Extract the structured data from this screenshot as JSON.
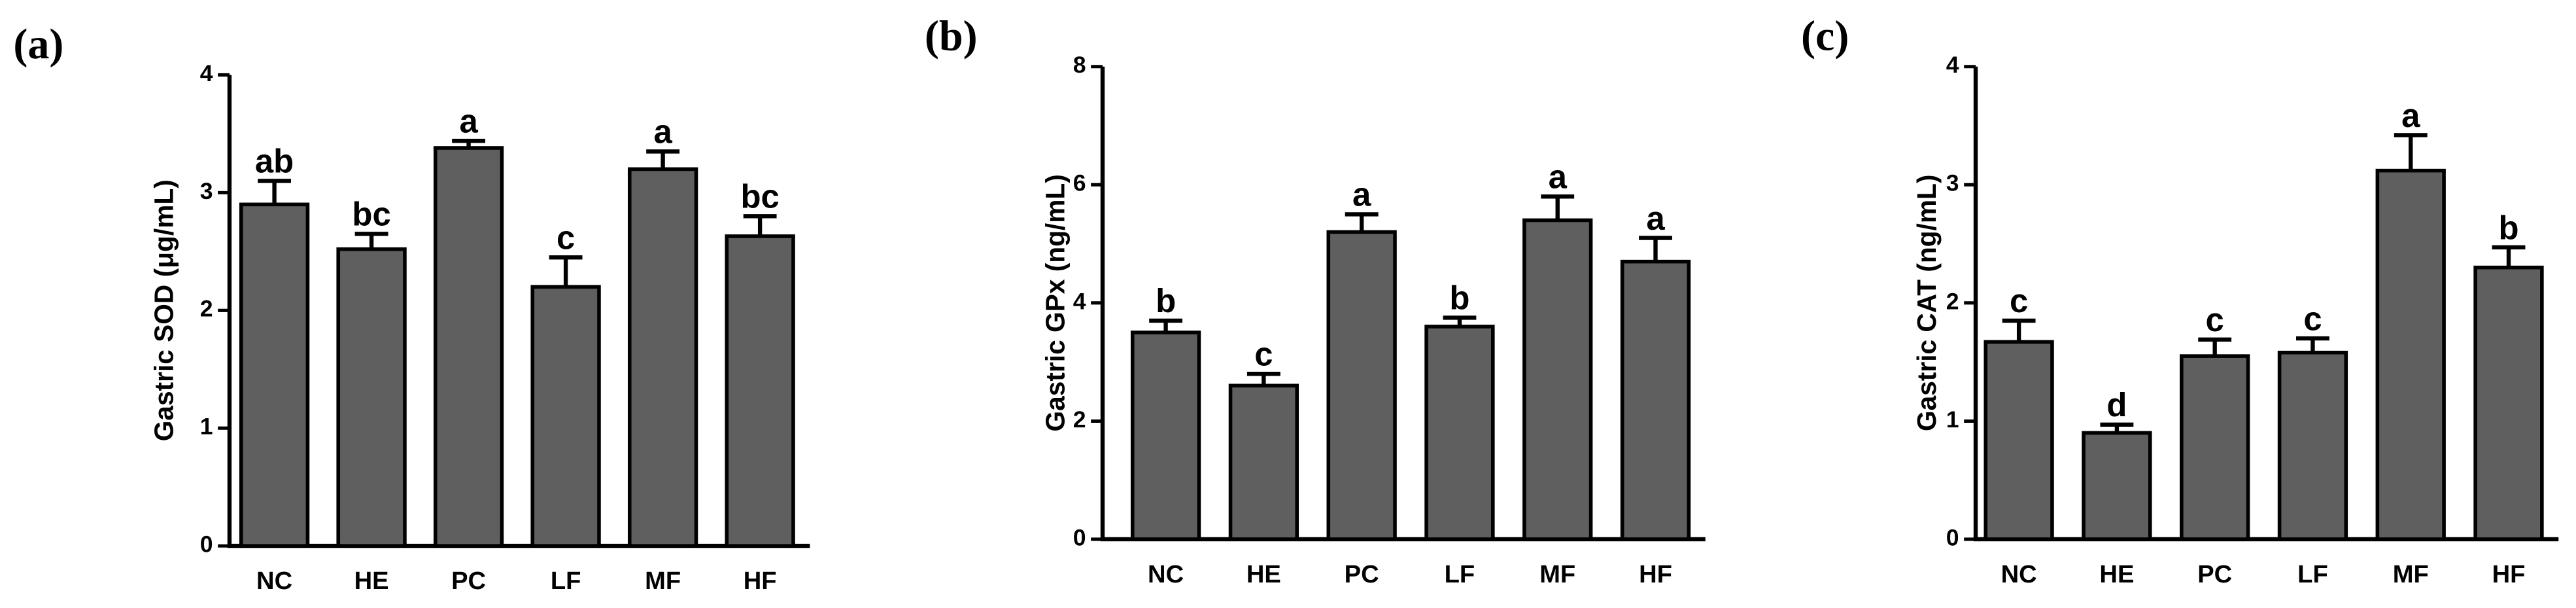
{
  "chart_data": [
    {
      "type": "bar",
      "panel_label": "(a)",
      "ylabel": "Gastric SOD (μg/mL)",
      "color": "#5f5f5f",
      "categories": [
        "NC",
        "HE",
        "PC",
        "LF",
        "MF",
        "HF"
      ],
      "values": [
        2.9,
        2.52,
        3.38,
        2.2,
        3.2,
        2.63
      ],
      "errors": [
        0.2,
        0.13,
        0.06,
        0.25,
        0.15,
        0.17
      ],
      "annotations": [
        "ab",
        "bc",
        "a",
        "c",
        "a",
        "bc"
      ],
      "ylim": [
        0,
        4
      ],
      "yticks": [
        0,
        1,
        2,
        3,
        4
      ]
    },
    {
      "type": "bar",
      "panel_label": "(b)",
      "ylabel": "Gastric GPx (ng/mL)",
      "color": "#5f5f5f",
      "categories": [
        "NC",
        "HE",
        "PC",
        "LF",
        "MF",
        "HF"
      ],
      "values": [
        3.5,
        2.6,
        5.2,
        3.6,
        5.4,
        4.7
      ],
      "errors": [
        0.2,
        0.2,
        0.3,
        0.15,
        0.4,
        0.4
      ],
      "annotations": [
        "b",
        "c",
        "a",
        "b",
        "a",
        "a"
      ],
      "ylim": [
        0,
        8
      ],
      "yticks": [
        0,
        2,
        4,
        6,
        8
      ]
    },
    {
      "type": "bar",
      "panel_label": "(c)",
      "ylabel": "Gastric CAT (ng/mL)",
      "color": "#5f5f5f",
      "categories": [
        "NC",
        "HE",
        "PC",
        "LF",
        "MF",
        "HF"
      ],
      "values": [
        1.67,
        0.9,
        1.55,
        1.58,
        3.12,
        2.3
      ],
      "errors": [
        0.18,
        0.07,
        0.14,
        0.12,
        0.3,
        0.17
      ],
      "annotations": [
        "c",
        "d",
        "c",
        "c",
        "a",
        "b"
      ],
      "ylim": [
        0,
        4
      ],
      "yticks": [
        0,
        1,
        2,
        3,
        4
      ]
    }
  ]
}
